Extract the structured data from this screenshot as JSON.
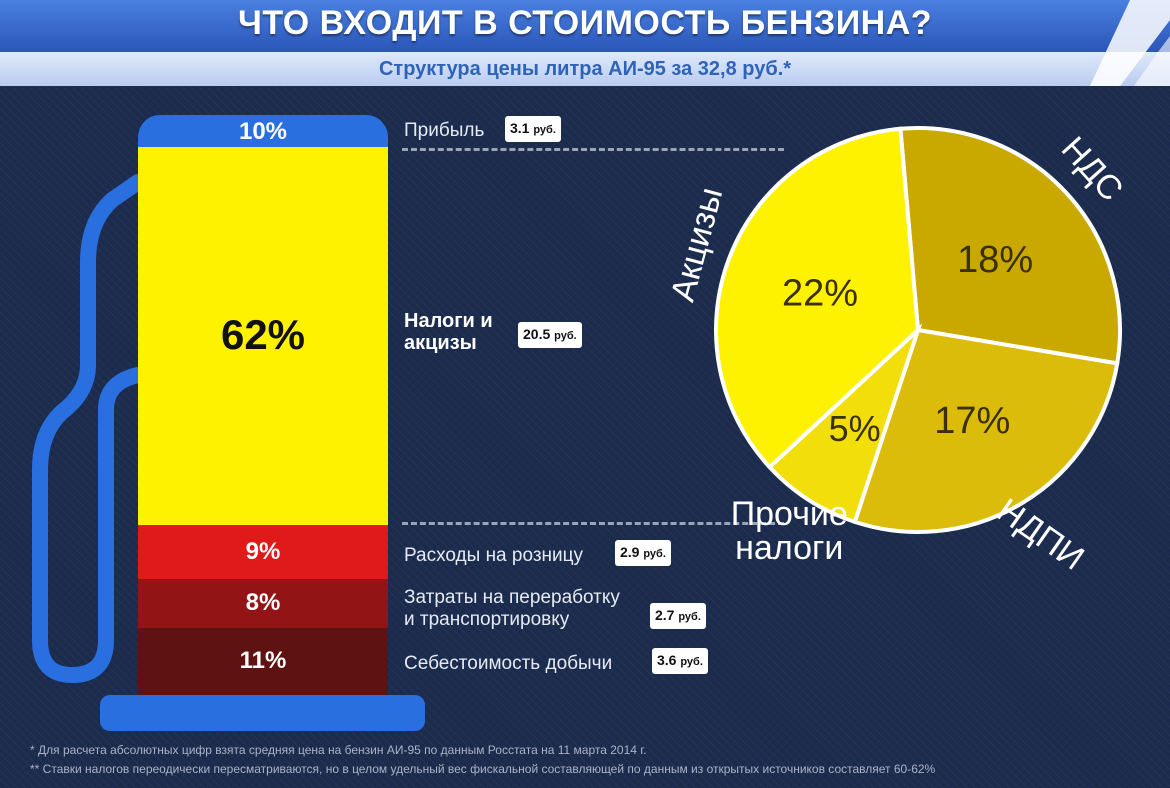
{
  "title": "ЧТО ВХОДИТ В СТОИМОСТЬ БЕНЗИНА?",
  "subtitle": "Структура цены литра АИ-95 за 32,8 руб.*",
  "currency_unit": "руб.",
  "chart_data": [
    {
      "type": "bar",
      "subtype": "stacked-single-column",
      "title": "Структура цены литра АИ-95 за 32,8 руб.*",
      "unit": "%",
      "segments": [
        {
          "label": "Прибыль",
          "percent": 10,
          "percent_label": "10%",
          "rub": "3.1",
          "color": "#2a6fe0"
        },
        {
          "label": "Налоги и акцизы",
          "label_lines": [
            "Налоги и",
            "акцизы"
          ],
          "percent": 62,
          "percent_label": "62%",
          "rub": "20.5",
          "color": "#fff200"
        },
        {
          "label": "Расходы на розницу",
          "percent": 9,
          "percent_label": "9%",
          "rub": "2.9",
          "color": "#e01a1a"
        },
        {
          "label": "Затраты на переработку и транспортировку",
          "label_lines": [
            "Затраты на переработку",
            "и транспортировку"
          ],
          "percent": 8,
          "percent_label": "8%",
          "rub": "2.7",
          "color": "#931414"
        },
        {
          "label": "Себестоимость добычи",
          "percent": 11,
          "percent_label": "11%",
          "rub": "3.6",
          "color": "#5e1212"
        }
      ]
    },
    {
      "type": "pie",
      "slices": [
        {
          "label": "НДС",
          "value": 18,
          "value_label": "18%",
          "color": "#c9a800"
        },
        {
          "label": "НДПИ",
          "value": 17,
          "value_label": "17%",
          "color": "#dcbc0a"
        },
        {
          "label": "Прочие налоги",
          "label_lines": [
            "Прочие",
            "налоги"
          ],
          "value": 5,
          "value_label": "5%",
          "color": "#f1de0a"
        },
        {
          "label": "Акцизы",
          "value": 22,
          "value_label": "22%",
          "color": "#fff200"
        }
      ]
    }
  ],
  "footnotes": [
    "* Для расчета абсолютных цифр взята средняя цена на бензин АИ-95 по данным Росстата на 11 марта 2014 г.",
    "** Ставки налогов переодически пересматриваются, но в целом удельный вес фискальной составляющей по данным из открытых источников составляет 60-62%"
  ]
}
